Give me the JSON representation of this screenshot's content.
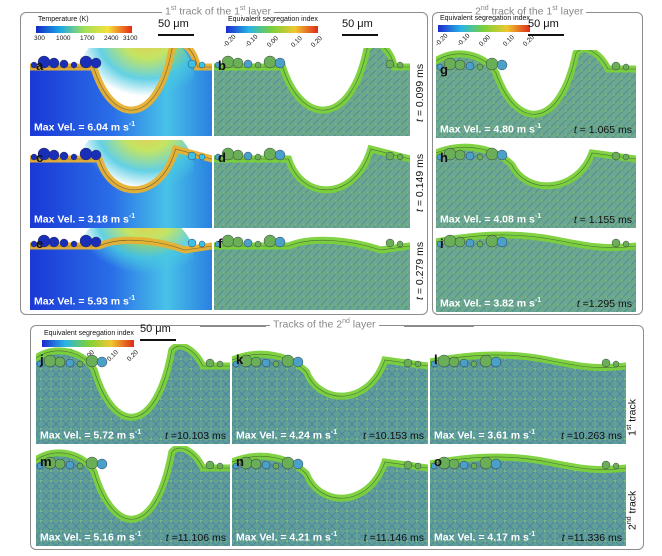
{
  "group_top_left": {
    "title": "1st track of the 1st layer",
    "title_base": "1",
    "title_sup1": "st",
    "title_mid": " track of the 1",
    "title_sup2": "st",
    "title_end": " layer"
  },
  "group_top_right": {
    "title_base": "2",
    "title_sup1": "nd",
    "title_mid": " track of the 1",
    "title_sup2": "st",
    "title_end": " layer"
  },
  "group_bottom": {
    "title": "Tracks of the 2nd layer",
    "title_base": "Tracks of the 2",
    "title_sup": "nd",
    "title_end": " layer"
  },
  "temperature_colorbar": {
    "title": "Temperature (K)",
    "ticks": [
      "300",
      "1000",
      "1700",
      "2400",
      "3100"
    ]
  },
  "segregation_colorbar": {
    "title": "Equivalent segregation index",
    "ticks": [
      "-0.20",
      "-0.10",
      "0.00",
      "0.10",
      "0.20"
    ]
  },
  "scale_bar_label": "50 μm",
  "velocity_prefix": "Max Vel. = ",
  "velocity_unit": "m s",
  "velocity_unit_sup": "-1",
  "time_prefix": "t",
  "panels": {
    "a": {
      "label": "a",
      "velocity": "6.04"
    },
    "b": {
      "label": "b"
    },
    "c": {
      "label": "c",
      "velocity": "3.18"
    },
    "d": {
      "label": "d"
    },
    "e": {
      "label": "e",
      "velocity": "5.93"
    },
    "f": {
      "label": "f"
    },
    "g": {
      "label": "g",
      "velocity": "4.80",
      "time": " = 1.065 ms"
    },
    "h": {
      "label": "h",
      "velocity": "4.08",
      "time": " = 1.155 ms"
    },
    "i": {
      "label": "i",
      "velocity": "3.82",
      "time": " =1.295 ms"
    },
    "j": {
      "label": "j",
      "velocity": "5.72",
      "time": " =10.103 ms"
    },
    "k": {
      "label": "k",
      "velocity": "4.24",
      "time": " =10.153 ms"
    },
    "l": {
      "label": "l",
      "velocity": "3.61",
      "time": " =10.263 ms"
    },
    "m": {
      "label": "m",
      "velocity": "5.16",
      "time": " =11.106 ms"
    },
    "n": {
      "label": "n",
      "velocity": "4.21",
      "time": " =11.146 ms"
    },
    "o": {
      "label": "o",
      "velocity": "4.17",
      "time": " =11.336 ms"
    }
  },
  "row_times": {
    "row1": " = 0.099 ms",
    "row2": " = 0.149 ms",
    "row3": " = 0.279 ms"
  },
  "track_labels": {
    "first": {
      "base": "1",
      "sup": "st",
      "end": " track"
    },
    "second": {
      "base": "2",
      "sup": "nd",
      "end": " track"
    }
  },
  "colors": {
    "frame": "#8c8c8c",
    "substrate_blue": "#1a3fd6",
    "segregation_green": "#6fbf5a",
    "melt_green": "#7ad13a",
    "hot_orange": "#e8a020"
  }
}
